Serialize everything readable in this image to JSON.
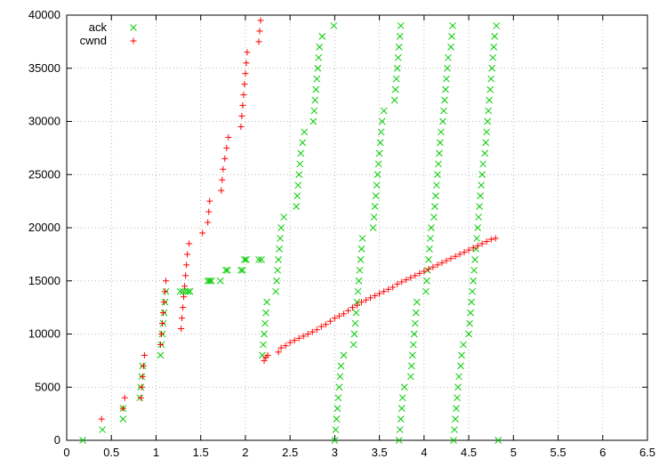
{
  "chart_data": {
    "type": "scatter",
    "xlim": [
      0,
      6.5
    ],
    "ylim": [
      0,
      40000
    ],
    "xticks": [
      0,
      0.5,
      1,
      1.5,
      2,
      2.5,
      3,
      3.5,
      4,
      4.5,
      5,
      5.5,
      6,
      6.5
    ],
    "yticks": [
      0,
      5000,
      10000,
      15000,
      20000,
      25000,
      30000,
      35000,
      40000
    ],
    "grid": true,
    "legend_position": "top-left",
    "series": [
      {
        "name": "ack",
        "color": "#00cc00",
        "marker": "x",
        "points": [
          [
            0.18,
            0
          ],
          [
            0.4,
            1000
          ],
          [
            0.63,
            2000
          ],
          [
            0.63,
            3000
          ],
          [
            0.82,
            4000
          ],
          [
            0.83,
            5000
          ],
          [
            0.84,
            6000
          ],
          [
            0.85,
            7000
          ],
          [
            1.05,
            8000
          ],
          [
            1.06,
            9000
          ],
          [
            1.07,
            10000
          ],
          [
            1.08,
            11000
          ],
          [
            1.09,
            12000
          ],
          [
            1.1,
            13000
          ],
          [
            1.11,
            14000
          ],
          [
            1.27,
            14000
          ],
          [
            1.3,
            14000
          ],
          [
            1.33,
            14000
          ],
          [
            1.36,
            14000
          ],
          [
            1.38,
            14000
          ],
          [
            1.58,
            15000
          ],
          [
            1.6,
            15000
          ],
          [
            1.62,
            15000
          ],
          [
            1.72,
            15000
          ],
          [
            1.78,
            16000
          ],
          [
            1.8,
            16000
          ],
          [
            1.95,
            16000
          ],
          [
            1.97,
            16000
          ],
          [
            1.99,
            17000
          ],
          [
            2.01,
            17000
          ],
          [
            2.15,
            17000
          ],
          [
            2.18,
            17000
          ],
          [
            2.19,
            8000
          ],
          [
            2.2,
            9000
          ],
          [
            2.21,
            10000
          ],
          [
            2.22,
            11000
          ],
          [
            2.23,
            12000
          ],
          [
            2.24,
            13000
          ],
          [
            2.34,
            14000
          ],
          [
            2.35,
            15000
          ],
          [
            2.36,
            16000
          ],
          [
            2.37,
            17000
          ],
          [
            2.38,
            18000
          ],
          [
            2.39,
            19000
          ],
          [
            2.4,
            20000
          ],
          [
            2.43,
            21000
          ],
          [
            2.57,
            22000
          ],
          [
            2.58,
            23000
          ],
          [
            2.59,
            24000
          ],
          [
            2.6,
            25000
          ],
          [
            2.61,
            26000
          ],
          [
            2.62,
            27000
          ],
          [
            2.64,
            28000
          ],
          [
            2.66,
            29000
          ],
          [
            2.76,
            30000
          ],
          [
            2.77,
            31000
          ],
          [
            2.78,
            32000
          ],
          [
            2.79,
            33000
          ],
          [
            2.8,
            34000
          ],
          [
            2.81,
            35000
          ],
          [
            2.82,
            36000
          ],
          [
            2.83,
            37000
          ],
          [
            2.86,
            38000
          ],
          [
            2.99,
            39000
          ],
          [
            3.0,
            0
          ],
          [
            3.01,
            1000
          ],
          [
            3.02,
            2000
          ],
          [
            3.03,
            3000
          ],
          [
            3.04,
            4000
          ],
          [
            3.05,
            5000
          ],
          [
            3.06,
            6000
          ],
          [
            3.07,
            7000
          ],
          [
            3.1,
            8000
          ],
          [
            3.21,
            9000
          ],
          [
            3.22,
            10000
          ],
          [
            3.23,
            11000
          ],
          [
            3.24,
            12000
          ],
          [
            3.25,
            13000
          ],
          [
            3.26,
            14000
          ],
          [
            3.27,
            15000
          ],
          [
            3.28,
            16000
          ],
          [
            3.29,
            17000
          ],
          [
            3.3,
            18000
          ],
          [
            3.31,
            19000
          ],
          [
            3.43,
            20000
          ],
          [
            3.44,
            21000
          ],
          [
            3.45,
            22000
          ],
          [
            3.46,
            23000
          ],
          [
            3.47,
            24000
          ],
          [
            3.48,
            25000
          ],
          [
            3.49,
            26000
          ],
          [
            3.5,
            27000
          ],
          [
            3.51,
            28000
          ],
          [
            3.52,
            29000
          ],
          [
            3.53,
            30000
          ],
          [
            3.55,
            31000
          ],
          [
            3.67,
            32000
          ],
          [
            3.68,
            33000
          ],
          [
            3.69,
            34000
          ],
          [
            3.7,
            35000
          ],
          [
            3.71,
            36000
          ],
          [
            3.72,
            37000
          ],
          [
            3.73,
            38000
          ],
          [
            3.74,
            39000
          ],
          [
            3.72,
            0
          ],
          [
            3.73,
            1000
          ],
          [
            3.74,
            2000
          ],
          [
            3.75,
            3000
          ],
          [
            3.76,
            4000
          ],
          [
            3.78,
            5000
          ],
          [
            3.85,
            6000
          ],
          [
            3.86,
            7000
          ],
          [
            3.87,
            8000
          ],
          [
            3.88,
            9000
          ],
          [
            3.89,
            10000
          ],
          [
            3.9,
            11000
          ],
          [
            3.91,
            12000
          ],
          [
            3.92,
            13000
          ],
          [
            4.02,
            14000
          ],
          [
            4.03,
            15000
          ],
          [
            4.04,
            16000
          ],
          [
            4.05,
            17000
          ],
          [
            4.06,
            18000
          ],
          [
            4.07,
            19000
          ],
          [
            4.08,
            20000
          ],
          [
            4.11,
            21000
          ],
          [
            4.12,
            22000
          ],
          [
            4.13,
            23000
          ],
          [
            4.14,
            24000
          ],
          [
            4.15,
            25000
          ],
          [
            4.16,
            26000
          ],
          [
            4.17,
            27000
          ],
          [
            4.18,
            28000
          ],
          [
            4.19,
            29000
          ],
          [
            4.21,
            30000
          ],
          [
            4.22,
            31000
          ],
          [
            4.23,
            32000
          ],
          [
            4.24,
            33000
          ],
          [
            4.25,
            34000
          ],
          [
            4.26,
            35000
          ],
          [
            4.27,
            36000
          ],
          [
            4.3,
            37000
          ],
          [
            4.31,
            38000
          ],
          [
            4.32,
            39000
          ],
          [
            4.33,
            0
          ],
          [
            4.34,
            1000
          ],
          [
            4.35,
            2000
          ],
          [
            4.36,
            3000
          ],
          [
            4.37,
            4000
          ],
          [
            4.38,
            5000
          ],
          [
            4.39,
            6000
          ],
          [
            4.41,
            7000
          ],
          [
            4.42,
            8000
          ],
          [
            4.44,
            9000
          ],
          [
            4.5,
            10000
          ],
          [
            4.51,
            11000
          ],
          [
            4.52,
            12000
          ],
          [
            4.53,
            13000
          ],
          [
            4.54,
            14000
          ],
          [
            4.55,
            15000
          ],
          [
            4.56,
            16000
          ],
          [
            4.57,
            17000
          ],
          [
            4.58,
            18000
          ],
          [
            4.59,
            19000
          ],
          [
            4.6,
            20000
          ],
          [
            4.61,
            21000
          ],
          [
            4.62,
            22000
          ],
          [
            4.63,
            23000
          ],
          [
            4.64,
            24000
          ],
          [
            4.65,
            25000
          ],
          [
            4.66,
            26000
          ],
          [
            4.68,
            27000
          ],
          [
            4.69,
            28000
          ],
          [
            4.7,
            29000
          ],
          [
            4.71,
            30000
          ],
          [
            4.72,
            31000
          ],
          [
            4.73,
            32000
          ],
          [
            4.74,
            33000
          ],
          [
            4.75,
            34000
          ],
          [
            4.76,
            35000
          ],
          [
            4.77,
            36000
          ],
          [
            4.78,
            37000
          ],
          [
            4.79,
            38000
          ],
          [
            4.81,
            39000
          ],
          [
            4.83,
            0
          ]
        ]
      },
      {
        "name": "cwnd",
        "color": "#ff0000",
        "marker": "+",
        "points": [
          [
            0.39,
            2000
          ],
          [
            0.63,
            3000
          ],
          [
            0.65,
            4000
          ],
          [
            0.83,
            4000
          ],
          [
            0.84,
            5000
          ],
          [
            0.85,
            6000
          ],
          [
            0.86,
            7000
          ],
          [
            0.87,
            8000
          ],
          [
            1.05,
            9000
          ],
          [
            1.06,
            10000
          ],
          [
            1.07,
            11000
          ],
          [
            1.08,
            12000
          ],
          [
            1.09,
            13000
          ],
          [
            1.1,
            14000
          ],
          [
            1.11,
            15000
          ],
          [
            1.28,
            10500
          ],
          [
            1.29,
            11500
          ],
          [
            1.3,
            12500
          ],
          [
            1.31,
            13500
          ],
          [
            1.32,
            14500
          ],
          [
            1.33,
            15500
          ],
          [
            1.34,
            16500
          ],
          [
            1.35,
            17500
          ],
          [
            1.37,
            18500
          ],
          [
            1.52,
            19500
          ],
          [
            1.58,
            20500
          ],
          [
            1.59,
            21500
          ],
          [
            1.6,
            22500
          ],
          [
            1.73,
            23500
          ],
          [
            1.74,
            24500
          ],
          [
            1.75,
            25500
          ],
          [
            1.77,
            26500
          ],
          [
            1.79,
            27500
          ],
          [
            1.81,
            28500
          ],
          [
            1.95,
            29500
          ],
          [
            1.96,
            30500
          ],
          [
            1.97,
            31500
          ],
          [
            1.98,
            32500
          ],
          [
            1.99,
            33500
          ],
          [
            2.0,
            34500
          ],
          [
            2.01,
            35500
          ],
          [
            2.02,
            36500
          ],
          [
            2.15,
            37500
          ],
          [
            2.16,
            38500
          ],
          [
            2.17,
            39500
          ],
          [
            2.21,
            7500
          ],
          [
            2.23,
            7800
          ],
          [
            2.25,
            8000
          ],
          [
            2.37,
            8300
          ],
          [
            2.4,
            8700
          ],
          [
            2.45,
            8900
          ],
          [
            2.5,
            9200
          ],
          [
            2.55,
            9400
          ],
          [
            2.6,
            9600
          ],
          [
            2.65,
            9800
          ],
          [
            2.7,
            10000
          ],
          [
            2.75,
            10200
          ],
          [
            2.8,
            10400
          ],
          [
            2.85,
            10700
          ],
          [
            2.9,
            10900
          ],
          [
            2.95,
            11200
          ],
          [
            3.0,
            11500
          ],
          [
            3.05,
            11700
          ],
          [
            3.1,
            11900
          ],
          [
            3.15,
            12200
          ],
          [
            3.2,
            12500
          ],
          [
            3.25,
            12700
          ],
          [
            3.3,
            13000
          ],
          [
            3.35,
            13200
          ],
          [
            3.4,
            13400
          ],
          [
            3.45,
            13600
          ],
          [
            3.5,
            13800
          ],
          [
            3.55,
            14000
          ],
          [
            3.6,
            14200
          ],
          [
            3.65,
            14400
          ],
          [
            3.7,
            14700
          ],
          [
            3.75,
            14900
          ],
          [
            3.8,
            15100
          ],
          [
            3.85,
            15300
          ],
          [
            3.9,
            15500
          ],
          [
            3.95,
            15700
          ],
          [
            4.0,
            15900
          ],
          [
            4.05,
            16100
          ],
          [
            4.1,
            16300
          ],
          [
            4.15,
            16500
          ],
          [
            4.2,
            16700
          ],
          [
            4.25,
            16900
          ],
          [
            4.3,
            17100
          ],
          [
            4.35,
            17300
          ],
          [
            4.4,
            17500
          ],
          [
            4.45,
            17700
          ],
          [
            4.5,
            17900
          ],
          [
            4.55,
            18100
          ],
          [
            4.6,
            18300
          ],
          [
            4.65,
            18500
          ],
          [
            4.7,
            18700
          ],
          [
            4.75,
            18900
          ],
          [
            4.8,
            19000
          ]
        ]
      }
    ]
  }
}
